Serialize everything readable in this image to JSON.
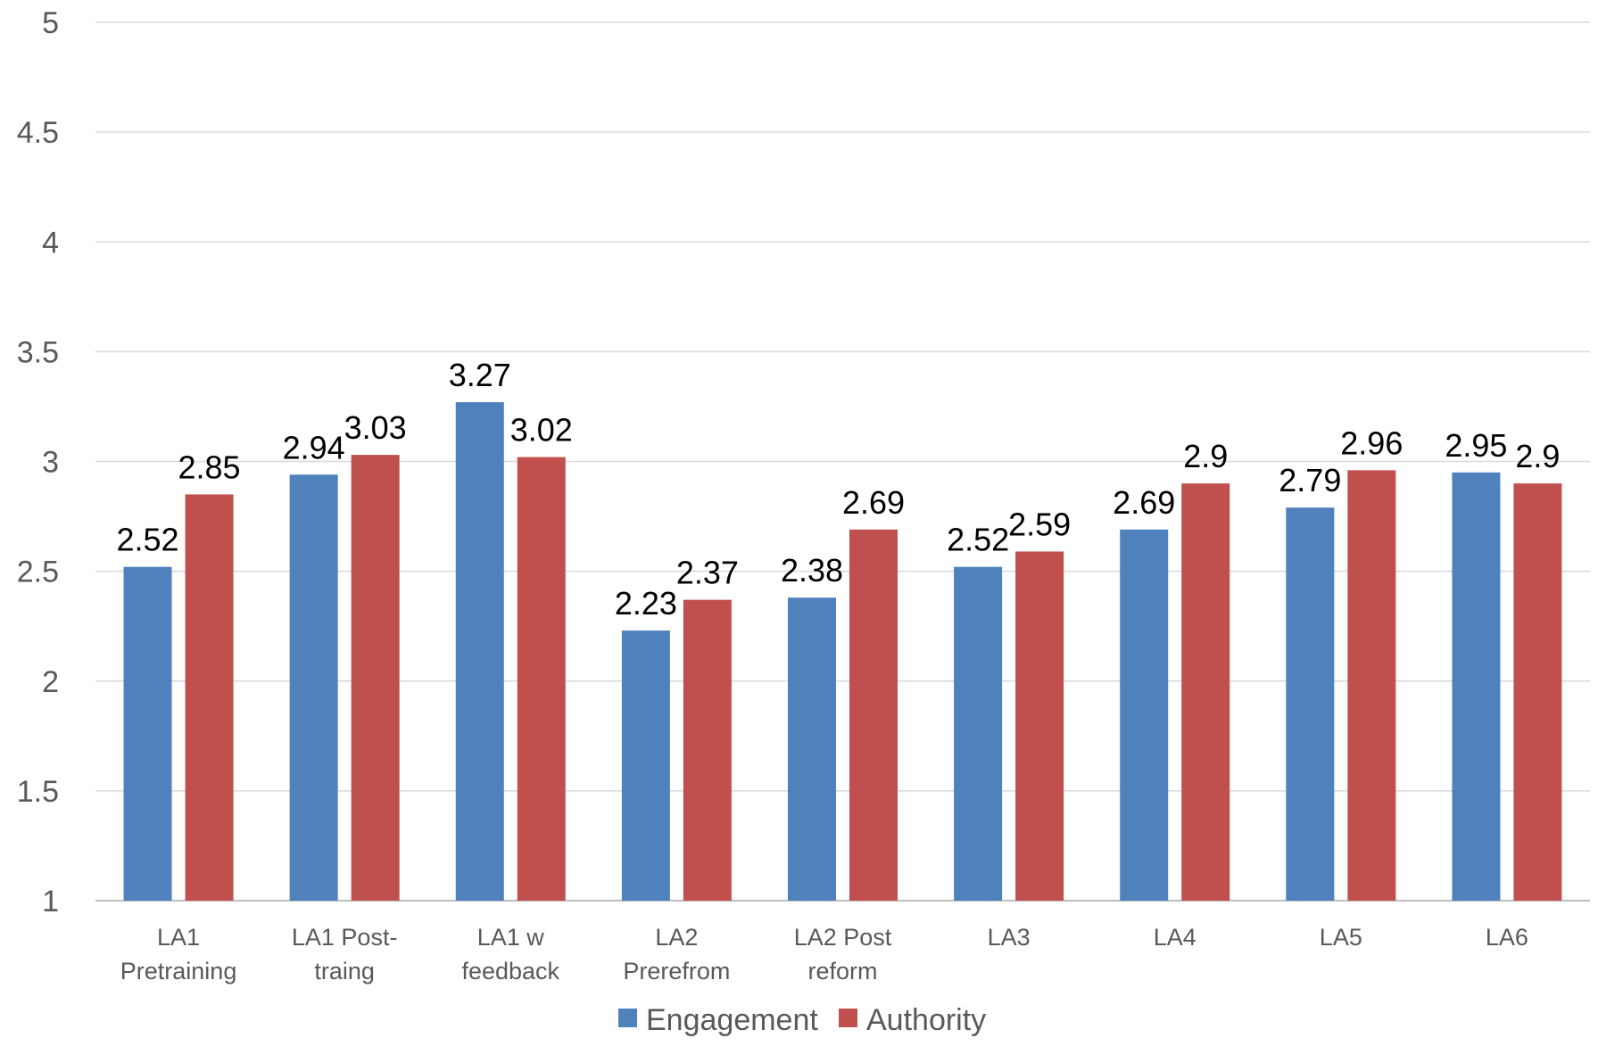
{
  "chart_data": {
    "type": "bar",
    "title": "",
    "xlabel": "",
    "ylabel": "",
    "ylim": [
      1,
      5
    ],
    "yticks": [
      "1",
      "1.5",
      "2",
      "2.5",
      "3",
      "3.5",
      "4",
      "4.5",
      "5"
    ],
    "grid": true,
    "legend_position": "bottom",
    "categories": [
      [
        "LA1",
        "Pretraining"
      ],
      [
        "LA1 Post-",
        "traing"
      ],
      [
        "LA1 w",
        "feedback"
      ],
      [
        "LA2",
        "Prerefrom"
      ],
      [
        "LA2 Post",
        "reform"
      ],
      [
        "LA3"
      ],
      [
        "LA4"
      ],
      [
        "LA5"
      ],
      [
        "LA6"
      ]
    ],
    "series": [
      {
        "name": "Engagement",
        "color": "#4F81BD",
        "values": [
          2.52,
          2.94,
          3.27,
          2.23,
          2.38,
          2.52,
          2.69,
          2.79,
          2.95
        ],
        "labels": [
          "2.52",
          "2.94",
          "3.27",
          "2.23",
          "2.38",
          "2.52",
          "2.69",
          "2.79",
          "2.95"
        ]
      },
      {
        "name": "Authority",
        "color": "#C0504D",
        "values": [
          2.85,
          3.03,
          3.02,
          2.37,
          2.69,
          2.59,
          2.9,
          2.96,
          2.9
        ],
        "labels": [
          "2.85",
          "3.03",
          "3.02",
          "2.37",
          "2.69",
          "2.59",
          "2.9",
          "2.96",
          "2.9"
        ]
      }
    ]
  }
}
